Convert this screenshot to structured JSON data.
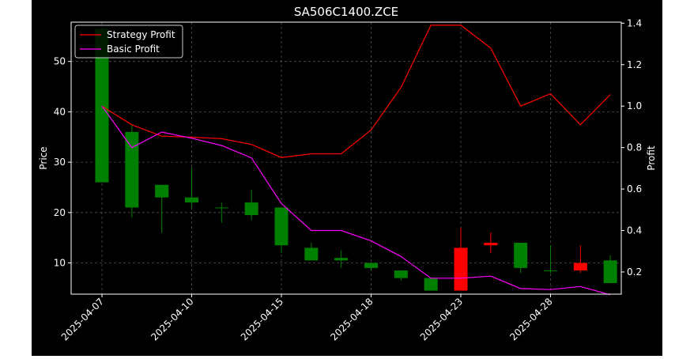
{
  "chart_data": {
    "type": "candlestick",
    "title": "SA506C1400.ZCE",
    "ylabel_left": "Price",
    "ylabel_right": "Profit",
    "xlabel": "",
    "grid": true,
    "legend_position": "top-left",
    "ylim_left": [
      3.8,
      57.8
    ],
    "ylim_right": [
      0.093,
      1.405
    ],
    "left_ticks": [
      10,
      20,
      30,
      40,
      50
    ],
    "right_ticks": [
      "0.2",
      "0.4",
      "0.6",
      "0.8",
      "1.0",
      "1.2",
      "1.4"
    ],
    "x_ticks": [
      "2025-04-07",
      "2025-04-10",
      "2025-04-15",
      "2025-04-18",
      "2025-04-23",
      "2025-04-28"
    ],
    "dates": [
      "2025-04-07",
      "2025-04-08",
      "2025-04-09",
      "2025-04-10",
      "2025-04-11",
      "2025-04-14",
      "2025-04-15",
      "2025-04-16",
      "2025-04-17",
      "2025-04-18",
      "2025-04-21",
      "2025-04-22",
      "2025-04-23",
      "2025-04-24",
      "2025-04-25",
      "2025-04-28",
      "2025-04-29",
      "2025-04-30"
    ],
    "candles": [
      {
        "open": 26.0,
        "close": 56.5,
        "high": 57.0,
        "low": 26.0
      },
      {
        "open": 21.0,
        "close": 36.0,
        "high": 37.5,
        "low": 19.0
      },
      {
        "open": 23.0,
        "close": 25.5,
        "high": 25.5,
        "low": 16.0
      },
      {
        "open": 22.0,
        "close": 23.0,
        "high": 29.0,
        "low": 21.0
      },
      {
        "open": 21.0,
        "close": 21.0,
        "high": 22.0,
        "low": 18.0
      },
      {
        "open": 19.5,
        "close": 22.0,
        "high": 24.5,
        "low": 18.5
      },
      {
        "open": 13.5,
        "close": 21.0,
        "high": 21.0,
        "low": 12.0
      },
      {
        "open": 10.5,
        "close": 13.0,
        "high": 14.0,
        "low": 10.5
      },
      {
        "open": 10.5,
        "close": 11.0,
        "high": 12.5,
        "low": 9.0
      },
      {
        "open": 9.0,
        "close": 10.0,
        "high": 10.0,
        "low": 8.5
      },
      {
        "open": 7.0,
        "close": 8.5,
        "high": 8.5,
        "low": 6.5
      },
      {
        "open": 4.5,
        "close": 7.0,
        "high": 7.0,
        "low": 4.5
      },
      {
        "open": 13.0,
        "close": 4.5,
        "high": 17.0,
        "low": 4.5
      },
      {
        "open": 14.0,
        "close": 13.5,
        "high": 16.0,
        "low": 12.0
      },
      {
        "open": 9.0,
        "close": 14.0,
        "high": 14.0,
        "low": 8.0
      },
      {
        "open": 8.5,
        "close": 8.5,
        "high": 13.5,
        "low": 8.0
      },
      {
        "open": 10.0,
        "close": 8.5,
        "high": 13.5,
        "low": 8.0
      },
      {
        "open": 6.0,
        "close": 10.5,
        "high": 11.5,
        "low": 6.0
      }
    ],
    "series": [
      {
        "name": "Strategy Profit",
        "color": "#ff0000",
        "values": [
          1.0,
          0.91,
          0.855,
          0.85,
          0.843,
          0.815,
          0.752,
          0.77,
          0.77,
          0.885,
          1.09,
          1.39,
          1.39,
          1.28,
          1.0,
          1.06,
          0.91,
          1.056
        ]
      },
      {
        "name": "Basic Profit",
        "color": "#ff00ff",
        "values": [
          1.0,
          0.8,
          0.875,
          0.845,
          0.81,
          0.75,
          0.53,
          0.4,
          0.4,
          0.35,
          0.275,
          0.17,
          0.17,
          0.18,
          0.12,
          0.115,
          0.13,
          0.09
        ]
      }
    ],
    "up_color": "#008000",
    "down_color": "#ff0000"
  }
}
